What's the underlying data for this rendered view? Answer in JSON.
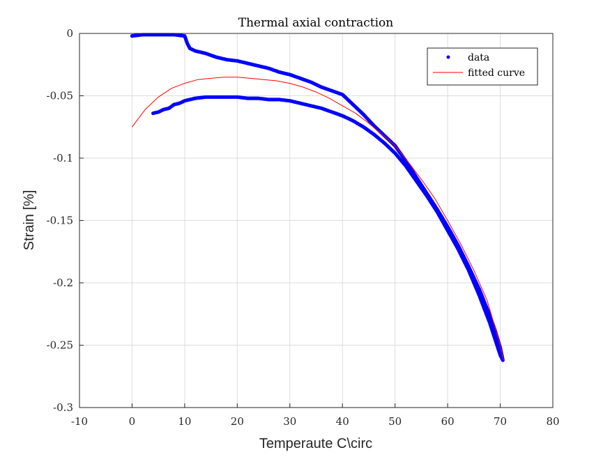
{
  "chart_data": {
    "type": "scatter",
    "title": "Thermal axial contraction",
    "xlabel": "Temperaute C\\circ",
    "ylabel": "Strain [%]",
    "xlim": [
      -10,
      80
    ],
    "ylim": [
      -0.3,
      0
    ],
    "xticks": [
      -10,
      0,
      10,
      20,
      30,
      40,
      50,
      60,
      70,
      80
    ],
    "yticks": [
      0,
      -0.05,
      -0.1,
      -0.15,
      -0.2,
      -0.25,
      -0.3
    ],
    "xtick_labels": [
      "-10",
      "0",
      "10",
      "20",
      "30",
      "40",
      "50",
      "60",
      "70",
      "80"
    ],
    "ytick_labels": [
      "0",
      "-0.05",
      "-0.1",
      "-0.15",
      "-0.2",
      "-0.25",
      "-0.3"
    ],
    "grid": true,
    "legend_position": "top-right",
    "series": [
      {
        "name": "data",
        "style": "markers",
        "color": "#0000ff",
        "x": [
          0,
          2,
          4,
          6,
          8,
          10,
          10.5,
          11,
          12,
          14,
          16,
          18,
          20,
          22,
          24,
          26,
          28,
          30,
          32,
          34,
          36,
          38,
          40,
          42,
          44,
          46,
          48,
          50,
          52,
          54,
          56,
          58,
          60,
          62,
          64,
          66,
          68,
          69,
          70,
          70.5,
          70,
          68,
          66,
          64,
          62,
          60,
          58,
          56,
          54,
          52,
          50,
          48,
          46,
          44,
          42,
          40,
          38,
          36,
          34,
          32,
          30,
          28,
          26,
          24,
          22,
          20,
          18,
          16,
          14,
          12,
          10,
          9,
          8,
          7,
          6,
          5,
          4
        ],
        "y": [
          -0.002,
          -0.001,
          -0.001,
          -0.001,
          -0.001,
          -0.002,
          -0.008,
          -0.012,
          -0.014,
          -0.016,
          -0.019,
          -0.021,
          -0.022,
          -0.024,
          -0.026,
          -0.028,
          -0.031,
          -0.033,
          -0.036,
          -0.039,
          -0.043,
          -0.046,
          -0.049,
          -0.057,
          -0.065,
          -0.074,
          -0.082,
          -0.09,
          -0.102,
          -0.115,
          -0.128,
          -0.141,
          -0.155,
          -0.17,
          -0.187,
          -0.205,
          -0.226,
          -0.238,
          -0.252,
          -0.262,
          -0.258,
          -0.232,
          -0.21,
          -0.19,
          -0.173,
          -0.158,
          -0.143,
          -0.13,
          -0.118,
          -0.106,
          -0.096,
          -0.088,
          -0.081,
          -0.075,
          -0.07,
          -0.066,
          -0.063,
          -0.06,
          -0.058,
          -0.056,
          -0.054,
          -0.053,
          -0.053,
          -0.052,
          -0.052,
          -0.051,
          -0.051,
          -0.051,
          -0.051,
          -0.052,
          -0.054,
          -0.056,
          -0.057,
          -0.06,
          -0.061,
          -0.063,
          -0.064
        ]
      },
      {
        "name": "fitted curve",
        "style": "line",
        "color": "#ff0000",
        "x": [
          0,
          2.5,
          5,
          7.5,
          10,
          12.5,
          15,
          17.5,
          20,
          22.5,
          25,
          27.5,
          30,
          32.5,
          35,
          37.5,
          40,
          42.5,
          45,
          47.5,
          50,
          52.5,
          55,
          57.5,
          60,
          62.5,
          65,
          67.5,
          70,
          70.6
        ],
        "y": [
          -0.075,
          -0.061,
          -0.051,
          -0.044,
          -0.04,
          -0.037,
          -0.036,
          -0.035,
          -0.035,
          -0.036,
          -0.037,
          -0.038,
          -0.04,
          -0.043,
          -0.047,
          -0.052,
          -0.058,
          -0.064,
          -0.072,
          -0.081,
          -0.09,
          -0.103,
          -0.117,
          -0.132,
          -0.15,
          -0.169,
          -0.19,
          -0.214,
          -0.25,
          -0.262
        ]
      }
    ]
  }
}
